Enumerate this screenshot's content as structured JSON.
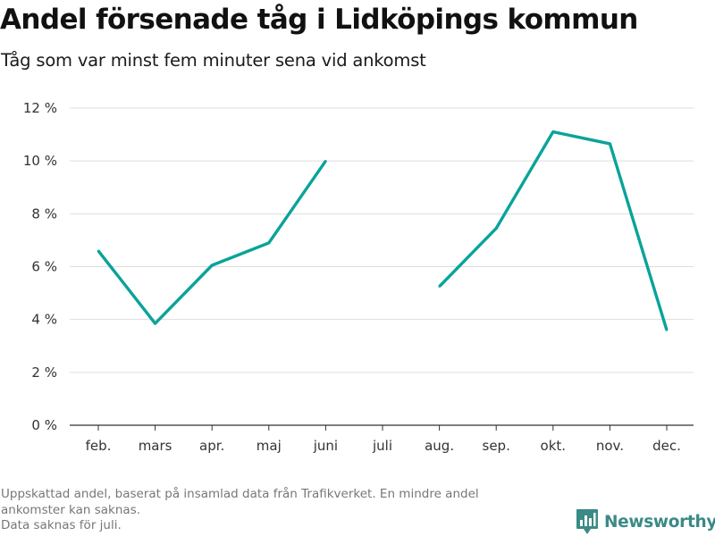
{
  "header": {
    "title": "Andel försenade tåg i Lidköpings kommun",
    "subtitle": "Tåg som var minst fem minuter sena vid ankomst"
  },
  "chart_data": {
    "type": "line",
    "title": "Andel försenade tåg i Lidköpings kommun",
    "subtitle": "Tåg som var minst fem minuter sena vid ankomst",
    "categories": [
      "feb.",
      "mars",
      "apr.",
      "maj",
      "juni",
      "juli",
      "aug.",
      "sep.",
      "okt.",
      "nov.",
      "dec."
    ],
    "series": [
      {
        "values": [
          6.6,
          3.85,
          6.05,
          6.9,
          10.0,
          null,
          5.25,
          7.45,
          11.1,
          10.65,
          3.6
        ]
      }
    ],
    "ylim": [
      0,
      12
    ],
    "yticks": [
      0,
      2,
      4,
      6,
      8,
      10,
      12
    ],
    "ytick_labels": [
      "0 %",
      "2 %",
      "4 %",
      "6 %",
      "8 %",
      "10 %",
      "12 %"
    ],
    "xlabel": "",
    "ylabel": "",
    "grid": true,
    "line_color": "#0aa39a",
    "grid_color": "#dddddd"
  },
  "footnote": {
    "lines": [
      "Uppskattad andel, baserat på insamlad data från Trafikverket. En mindre andel",
      "ankomster kan saknas.",
      "Data saknas för juli."
    ]
  },
  "brand": {
    "name": "Newsworthy",
    "icon": "newsworthy-logo-icon",
    "color": "#3a8a86"
  }
}
